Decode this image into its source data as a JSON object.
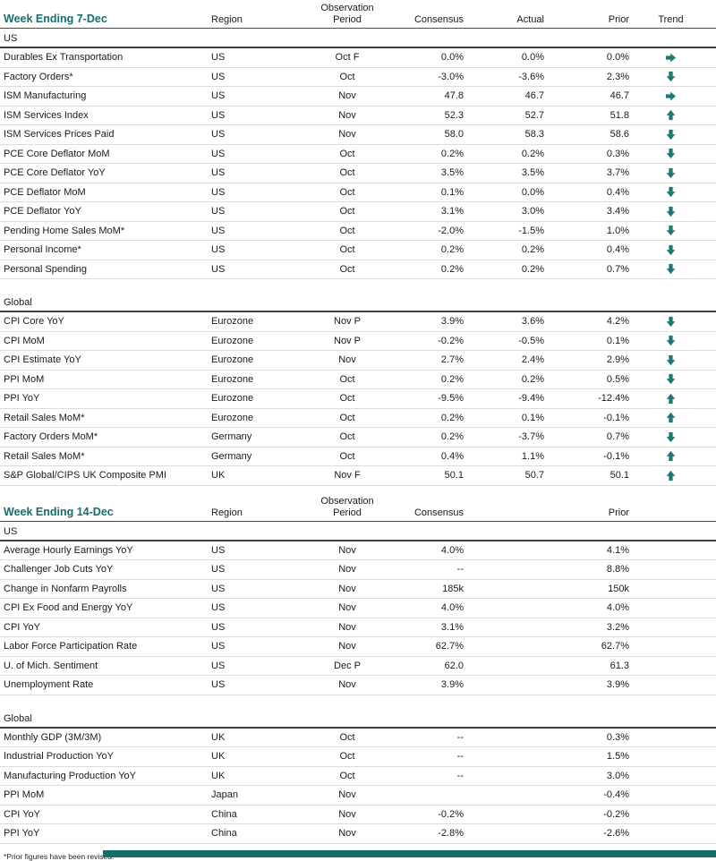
{
  "colors": {
    "accent": "#156e6e",
    "arrow": "#1e7a70"
  },
  "footnote": "*Prior figures have been revised.",
  "table1": {
    "title": "Week Ending 7-Dec",
    "headers": {
      "region": "Region",
      "period_top": "Observation",
      "period": "Period",
      "consensus": "Consensus",
      "actual": "Actual",
      "prior": "Prior",
      "trend": "Trend"
    },
    "sections": [
      {
        "label": "US",
        "rows": [
          {
            "name": "Durables Ex Transportation",
            "region": "US",
            "period": "Oct F",
            "consensus": "0.0%",
            "actual": "0.0%",
            "prior": "0.0%",
            "trend": "right"
          },
          {
            "name": "Factory Orders*",
            "region": "US",
            "period": "Oct",
            "consensus": "-3.0%",
            "actual": "-3.6%",
            "prior": "2.3%",
            "trend": "down"
          },
          {
            "name": "ISM Manufacturing",
            "region": "US",
            "period": "Nov",
            "consensus": "47.8",
            "actual": "46.7",
            "prior": "46.7",
            "trend": "right"
          },
          {
            "name": "ISM Services Index",
            "region": "US",
            "period": "Nov",
            "consensus": "52.3",
            "actual": "52.7",
            "prior": "51.8",
            "trend": "up"
          },
          {
            "name": "ISM Services Prices Paid",
            "region": "US",
            "period": "Nov",
            "consensus": "58.0",
            "actual": "58.3",
            "prior": "58.6",
            "trend": "down"
          },
          {
            "name": "PCE Core Deflator MoM",
            "region": "US",
            "period": "Oct",
            "consensus": "0.2%",
            "actual": "0.2%",
            "prior": "0.3%",
            "trend": "down"
          },
          {
            "name": "PCE Core Deflator YoY",
            "region": "US",
            "period": "Oct",
            "consensus": "3.5%",
            "actual": "3.5%",
            "prior": "3.7%",
            "trend": "down"
          },
          {
            "name": "PCE Deflator MoM",
            "region": "US",
            "period": "Oct",
            "consensus": "0.1%",
            "actual": "0.0%",
            "prior": "0.4%",
            "trend": "down"
          },
          {
            "name": "PCE Deflator YoY",
            "region": "US",
            "period": "Oct",
            "consensus": "3.1%",
            "actual": "3.0%",
            "prior": "3.4%",
            "trend": "down"
          },
          {
            "name": "Pending Home Sales MoM*",
            "region": "US",
            "period": "Oct",
            "consensus": "-2.0%",
            "actual": "-1.5%",
            "prior": "1.0%",
            "trend": "down"
          },
          {
            "name": "Personal Income*",
            "region": "US",
            "period": "Oct",
            "consensus": "0.2%",
            "actual": "0.2%",
            "prior": "0.4%",
            "trend": "down"
          },
          {
            "name": "Personal Spending",
            "region": "US",
            "period": "Oct",
            "consensus": "0.2%",
            "actual": "0.2%",
            "prior": "0.7%",
            "trend": "down"
          }
        ]
      },
      {
        "label": "Global",
        "rows": [
          {
            "name": "CPI Core YoY",
            "region": "Eurozone",
            "period": "Nov P",
            "consensus": "3.9%",
            "actual": "3.6%",
            "prior": "4.2%",
            "trend": "down"
          },
          {
            "name": "CPI MoM",
            "region": "Eurozone",
            "period": "Nov P",
            "consensus": "-0.2%",
            "actual": "-0.5%",
            "prior": "0.1%",
            "trend": "down"
          },
          {
            "name": "CPI Estimate YoY",
            "region": "Eurozone",
            "period": "Nov",
            "consensus": "2.7%",
            "actual": "2.4%",
            "prior": "2.9%",
            "trend": "down"
          },
          {
            "name": "PPI MoM",
            "region": "Eurozone",
            "period": "Oct",
            "consensus": "0.2%",
            "actual": "0.2%",
            "prior": "0.5%",
            "trend": "down"
          },
          {
            "name": "PPI YoY",
            "region": "Eurozone",
            "period": "Oct",
            "consensus": "-9.5%",
            "actual": "-9.4%",
            "prior": "-12.4%",
            "trend": "up"
          },
          {
            "name": "Retail Sales MoM*",
            "region": "Eurozone",
            "period": "Oct",
            "consensus": "0.2%",
            "actual": "0.1%",
            "prior": "-0.1%",
            "trend": "up"
          },
          {
            "name": "Factory Orders MoM*",
            "region": "Germany",
            "period": "Oct",
            "consensus": "0.2%",
            "actual": "-3.7%",
            "prior": "0.7%",
            "trend": "down"
          },
          {
            "name": "Retail Sales MoM*",
            "region": "Germany",
            "period": "Oct",
            "consensus": "0.4%",
            "actual": "1.1%",
            "prior": "-0.1%",
            "trend": "up"
          },
          {
            "name": "S&P Global/CIPS UK Composite PMI",
            "region": "UK",
            "period": "Nov F",
            "consensus": "50.1",
            "actual": "50.7",
            "prior": "50.1",
            "trend": "up"
          }
        ]
      }
    ]
  },
  "table2": {
    "title": "Week Ending 14-Dec",
    "headers": {
      "region": "Region",
      "period_top": "Observation",
      "period": "Period",
      "consensus": "Consensus",
      "prior": "Prior"
    },
    "sections": [
      {
        "label": "US",
        "rows": [
          {
            "name": "Average Hourly Earnings YoY",
            "region": "US",
            "period": "Nov",
            "consensus": "4.0%",
            "prior": "4.1%"
          },
          {
            "name": "Challenger Job Cuts YoY",
            "region": "US",
            "period": "Nov",
            "consensus": "--",
            "prior": "8.8%"
          },
          {
            "name": "Change in Nonfarm Payrolls",
            "region": "US",
            "period": "Nov",
            "consensus": "185k",
            "prior": "150k"
          },
          {
            "name": "CPI Ex Food and Energy YoY",
            "region": "US",
            "period": "Nov",
            "consensus": "4.0%",
            "prior": "4.0%"
          },
          {
            "name": "CPI YoY",
            "region": "US",
            "period": "Nov",
            "consensus": "3.1%",
            "prior": "3.2%"
          },
          {
            "name": "Labor Force Participation Rate",
            "region": "US",
            "period": "Nov",
            "consensus": "62.7%",
            "prior": "62.7%"
          },
          {
            "name": "U. of Mich. Sentiment",
            "region": "US",
            "period": "Dec P",
            "consensus": "62.0",
            "prior": "61.3"
          },
          {
            "name": "Unemployment Rate",
            "region": "US",
            "period": "Nov",
            "consensus": "3.9%",
            "prior": "3.9%"
          }
        ]
      },
      {
        "label": "Global",
        "rows": [
          {
            "name": "Monthly GDP (3M/3M)",
            "region": "UK",
            "period": "Oct",
            "consensus": "--",
            "prior": "0.3%"
          },
          {
            "name": "Industrial Production YoY",
            "region": "UK",
            "period": "Oct",
            "consensus": "--",
            "prior": "1.5%"
          },
          {
            "name": "Manufacturing Production YoY",
            "region": "UK",
            "period": "Oct",
            "consensus": "--",
            "prior": "3.0%"
          },
          {
            "name": "PPI MoM",
            "region": "Japan",
            "period": "Nov",
            "consensus": "",
            "prior": "-0.4%"
          },
          {
            "name": "CPI YoY",
            "region": "China",
            "period": "Nov",
            "consensus": "-0.2%",
            "prior": "-0.2%"
          },
          {
            "name": "PPI YoY",
            "region": "China",
            "period": "Nov",
            "consensus": "-2.8%",
            "prior": "-2.6%"
          }
        ]
      }
    ]
  }
}
